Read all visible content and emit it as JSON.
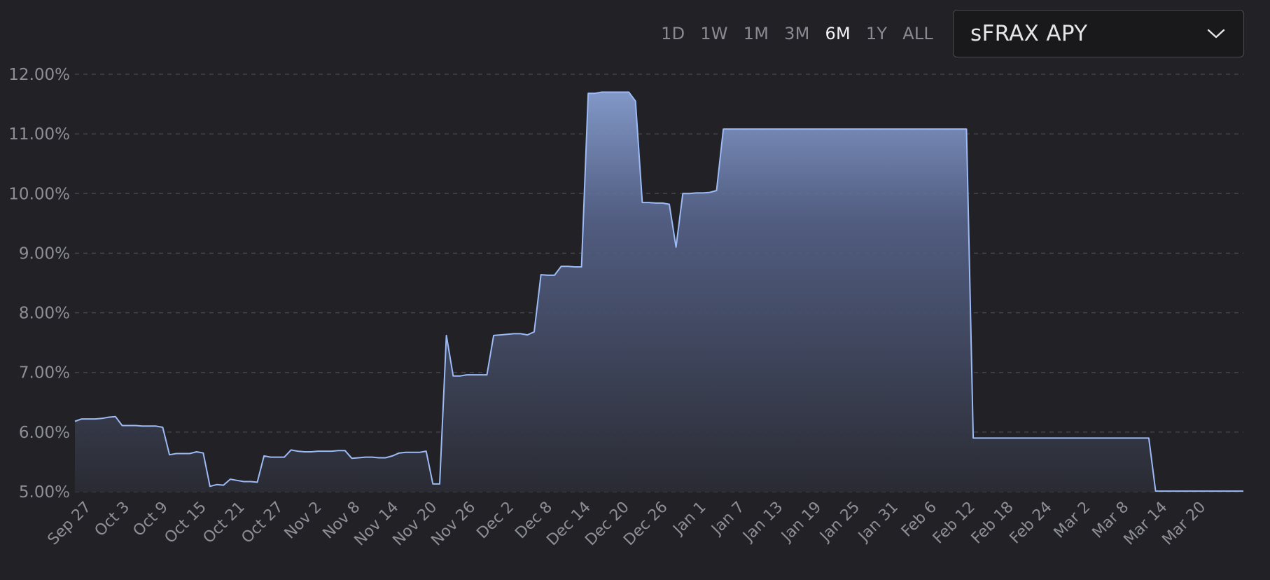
{
  "range_options": [
    {
      "label": "1D",
      "active": false
    },
    {
      "label": "1W",
      "active": false
    },
    {
      "label": "1M",
      "active": false
    },
    {
      "label": "3M",
      "active": false
    },
    {
      "label": "6M",
      "active": true
    },
    {
      "label": "1Y",
      "active": false
    },
    {
      "label": "ALL",
      "active": false
    }
  ],
  "metric_selector": {
    "label": "sFRAX APY",
    "icon": "chevron-down-icon"
  },
  "colors": {
    "line": "#9cbaf5",
    "grid": "#4a4a52",
    "background": "#222226"
  },
  "chart_data": {
    "type": "area",
    "title": "",
    "xlabel": "",
    "ylabel": "",
    "ylim": [
      5,
      12
    ],
    "grid": true,
    "yticks": [
      "5.00%",
      "6.00%",
      "7.00%",
      "8.00%",
      "9.00%",
      "10.00%",
      "11.00%",
      "12.00%"
    ],
    "xticks": [
      "Sep 27",
      "Oct 3",
      "Oct 9",
      "Oct 15",
      "Oct 21",
      "Oct 27",
      "Nov 2",
      "Nov 8",
      "Nov 14",
      "Nov 20",
      "Nov 26",
      "Dec 2",
      "Dec 8",
      "Dec 14",
      "Dec 20",
      "Dec 26",
      "Jan 1",
      "Jan 7",
      "Jan 13",
      "Jan 19",
      "Jan 25",
      "Jan 31",
      "Feb 6",
      "Feb 12",
      "Feb 18",
      "Feb 24",
      "Mar 2",
      "Mar 8",
      "Mar 14",
      "Mar 20"
    ],
    "series": [
      {
        "values": [
          6.18,
          6.22,
          6.22,
          6.22,
          6.23,
          6.25,
          6.26,
          6.11,
          6.11,
          6.11,
          6.1,
          6.1,
          6.1,
          6.08,
          5.62,
          5.64,
          5.64,
          5.64,
          5.67,
          5.65,
          5.09,
          5.12,
          5.11,
          5.21,
          5.19,
          5.17,
          5.17,
          5.16,
          5.6,
          5.58,
          5.58,
          5.58,
          5.7,
          5.68,
          5.67,
          5.67,
          5.68,
          5.68,
          5.68,
          5.69,
          5.69,
          5.56,
          5.57,
          5.58,
          5.58,
          5.57,
          5.57,
          5.6,
          5.65,
          5.66,
          5.66,
          5.66,
          5.68,
          5.13,
          5.13,
          7.62,
          6.94,
          6.94,
          6.96,
          6.96,
          6.96,
          6.96,
          7.62,
          7.63,
          7.64,
          7.65,
          7.65,
          7.63,
          7.68,
          8.64,
          8.63,
          8.63,
          8.78,
          8.78,
          8.77,
          8.77,
          11.68,
          11.68,
          11.7,
          11.7,
          11.7,
          11.7,
          11.7,
          11.55,
          9.85,
          9.85,
          9.84,
          9.84,
          9.82,
          9.1,
          10.0,
          10.0,
          10.01,
          10.01,
          10.02,
          10.05,
          11.08,
          11.08,
          11.08,
          11.08,
          11.08,
          11.08,
          11.08,
          11.08,
          11.08,
          11.08,
          11.08,
          11.08,
          11.08,
          11.08,
          11.08,
          11.08,
          11.08,
          11.08,
          11.08,
          11.08,
          11.08,
          11.08,
          11.08,
          11.08,
          11.08,
          11.08,
          11.08,
          11.08,
          11.08,
          11.08,
          11.08,
          11.08,
          11.08,
          11.08,
          11.08,
          11.08,
          11.08,
          5.9,
          5.9,
          5.9,
          5.9,
          5.9,
          5.9,
          5.9,
          5.9,
          5.9,
          5.9,
          5.9,
          5.9,
          5.9,
          5.9,
          5.9,
          5.9,
          5.9,
          5.9,
          5.9,
          5.9,
          5.9,
          5.9,
          5.9,
          5.9,
          5.9,
          5.9,
          5.9,
          5.01,
          5.01,
          5.01,
          5.01,
          5.01,
          5.01,
          5.01,
          5.01,
          5.01,
          5.01,
          5.01,
          5.01,
          5.01,
          5.01
        ]
      }
    ]
  }
}
